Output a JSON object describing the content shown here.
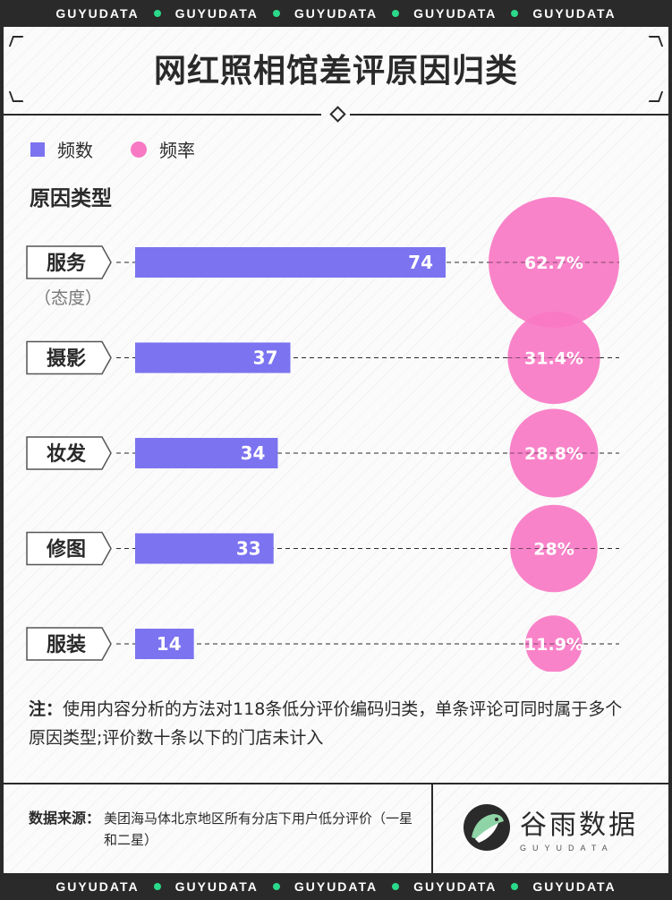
{
  "strip": {
    "items": [
      "GUYUDATA",
      "GUYUDATA",
      "GUYUDATA",
      "GUYUDATA",
      "GUYUDATA"
    ]
  },
  "title": "网红照相馆差评原因归类",
  "legend": {
    "count_label": "频数",
    "rate_label": "频率"
  },
  "section_head": "原因类型",
  "first_category_sub": "（态度）",
  "colors": {
    "bar": "#7b73f0",
    "bubble": "#f878c4",
    "ink": "#2a2a2a",
    "accent_green": "#2bd98a"
  },
  "chart_data": {
    "type": "bar",
    "categories": [
      "服务",
      "摄影",
      "妆发",
      "修图",
      "服装"
    ],
    "series": [
      {
        "name": "频数",
        "values": [
          74,
          37,
          34,
          33,
          14
        ]
      },
      {
        "name": "频率",
        "values": [
          62.7,
          31.4,
          28.8,
          28,
          11.9
        ],
        "labels": [
          "62.7%",
          "31.4%",
          "28.8%",
          "28%",
          "11.9%"
        ]
      }
    ],
    "xlim": [
      0,
      74
    ],
    "title": "网红照相馆差评原因归类"
  },
  "note": {
    "label": "注：",
    "text": "使用内容分析的方法对118条低分评价编码归类，单条评论可同时属于多个原因类型;评价数十条以下的门店未计入"
  },
  "source": {
    "label": "数据来源：",
    "text": "美团海马体北京地区所有分店下用户低分评价（一星和二星）"
  },
  "logo": {
    "cn": "谷雨数据",
    "en": "GUYUDATA"
  }
}
